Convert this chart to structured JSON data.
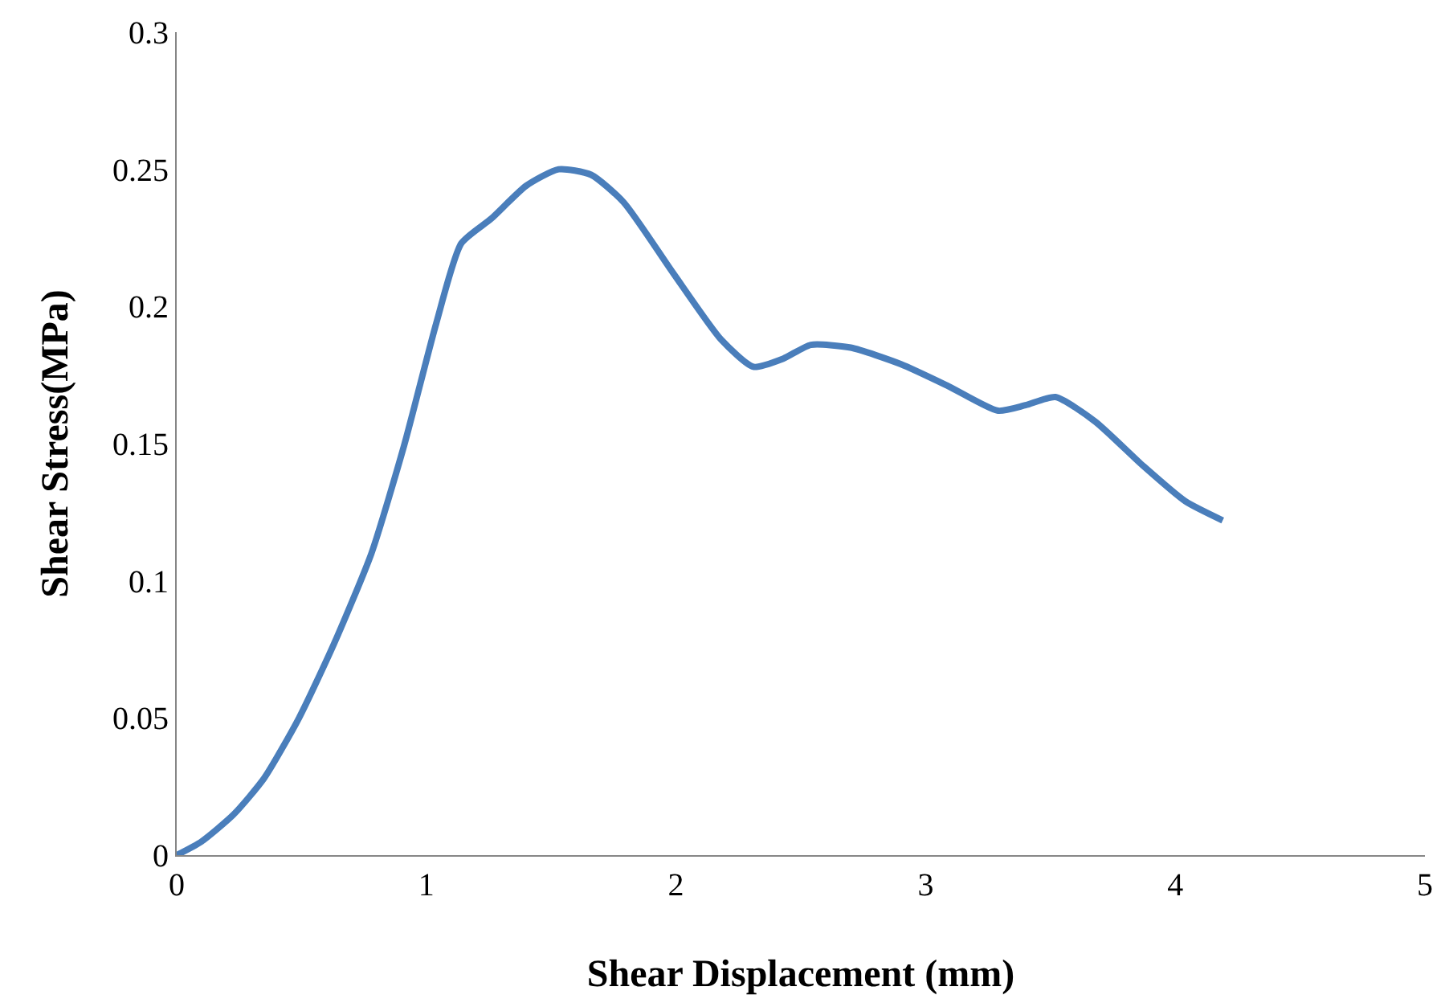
{
  "chart_data": {
    "type": "line",
    "xlabel": "Shear Displacement (mm)",
    "ylabel": "Shear Stress(MPa)",
    "xlim": [
      0,
      5
    ],
    "xticks": [
      0,
      1,
      2,
      3,
      4,
      5
    ],
    "ylim": [
      0,
      0.3
    ],
    "yticks": [
      0,
      0.05,
      0.1,
      0.15,
      0.2,
      0.25,
      0.3
    ],
    "marker": "none",
    "line_style": "solid",
    "series": [
      {
        "color": "#4a7ebb",
        "x": [
          0,
          0.1,
          0.23,
          0.35,
          0.49,
          0.63,
          0.78,
          0.91,
          1.04,
          1.14,
          1.26,
          1.4,
          1.53,
          1.66,
          1.79,
          1.99,
          2.18,
          2.31,
          2.43,
          2.54,
          2.7,
          2.9,
          3.09,
          3.29,
          3.4,
          3.52,
          3.68,
          3.87,
          4.04,
          4.19
        ],
        "values": [
          0,
          0.005,
          0.015,
          0.028,
          0.05,
          0.077,
          0.11,
          0.149,
          0.194,
          0.223,
          0.232,
          0.244,
          0.25,
          0.248,
          0.238,
          0.212,
          0.188,
          0.178,
          0.181,
          0.186,
          0.185,
          0.179,
          0.171,
          0.162,
          0.164,
          0.167,
          0.158,
          0.142,
          0.129,
          0.122
        ]
      }
    ]
  }
}
